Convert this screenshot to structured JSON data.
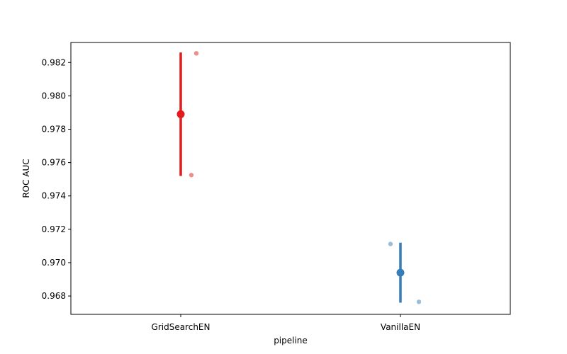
{
  "chart_data": {
    "type": "scatter",
    "title": "",
    "xlabel": "pipeline",
    "ylabel": "ROC AUC",
    "categories": [
      "GridSearchEN",
      "VanillaEN"
    ],
    "ylim": [
      0.9669,
      0.9832
    ],
    "yticks": [
      0.968,
      0.97,
      0.972,
      0.974,
      0.976,
      0.978,
      0.98,
      0.982
    ],
    "ytick_labels": [
      "0.968",
      "0.970",
      "0.972",
      "0.974",
      "0.976",
      "0.978",
      "0.980",
      "0.982"
    ],
    "grid": false,
    "legend": false,
    "series": [
      {
        "category": "GridSearchEN",
        "color": "#e41a1c",
        "mean": 0.9789,
        "ci": [
          0.9752,
          0.9826
        ],
        "points": [
          0.98255,
          0.97525
        ]
      },
      {
        "category": "VanillaEN",
        "color": "#377eb8",
        "mean": 0.9694,
        "ci": [
          0.9676,
          0.9712
        ],
        "points": [
          0.97112,
          0.96765
        ]
      }
    ]
  }
}
